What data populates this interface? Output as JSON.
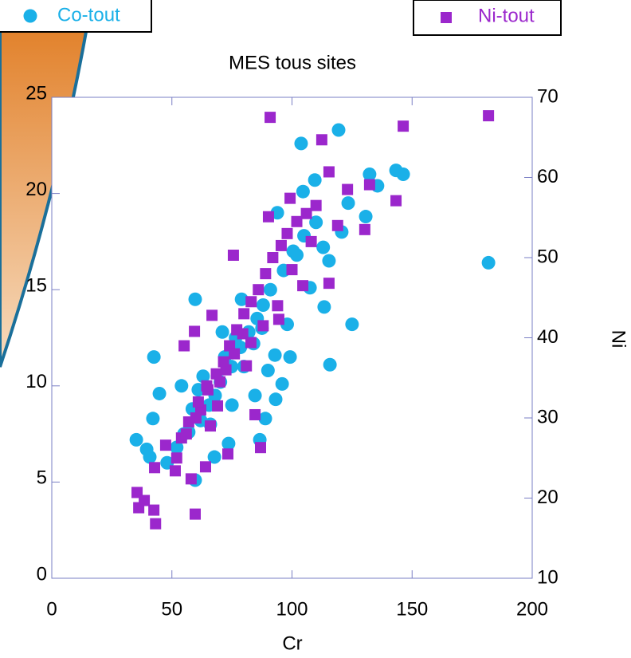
{
  "chart_data": {
    "type": "scatter",
    "title": "MES tous sites",
    "x_label": "Cr",
    "y2_label": "Ni",
    "xlim": [
      0,
      200
    ],
    "xticks": [
      0,
      50,
      100,
      150,
      200
    ],
    "ylim": [
      0,
      25
    ],
    "yticks": [
      0,
      5,
      10,
      15,
      20,
      25
    ],
    "y2lim": [
      10,
      70
    ],
    "y2ticks": [
      10,
      20,
      30,
      40,
      50,
      60,
      70
    ],
    "series": [
      {
        "name": "Co-tout",
        "color": "#1ab0e8",
        "marker": "circle",
        "x": [
          119.4,
          103.8,
          143.3,
          146.3,
          132.3,
          109.5,
          135.6,
          104.6,
          123.4,
          93.9,
          130.7,
          181.8,
          120.7,
          115.4,
          107.5,
          113.4,
          125.0,
          59.7,
          42.5,
          115.8,
          99.2,
          44.8,
          42.1,
          35.2,
          39.5,
          40.8,
          59.7,
          86.6,
          73.6,
          67.7,
          88.9,
          93.2,
          84.6,
          95.9,
          92.9,
          62.0,
          65.5,
          70.2,
          74.8,
          78.5,
          82.0,
          85.5,
          88.0,
          91.0,
          96.5,
          100.5,
          105.0,
          110.0,
          55.0,
          58.5,
          63.0,
          68.0,
          72.0,
          76.5,
          80.0,
          84.0,
          87.5,
          52.0,
          57.0,
          61.0,
          66.0,
          71.0,
          79.0,
          98.0,
          102.0,
          113.0,
          48.0,
          54.0,
          75.0,
          90.0
        ],
        "values": [
          23.3,
          22.6,
          21.2,
          21.0,
          21.0,
          20.7,
          20.4,
          20.1,
          19.5,
          19.0,
          18.8,
          16.4,
          18.0,
          16.5,
          15.1,
          14.1,
          13.2,
          14.5,
          11.5,
          11.1,
          11.5,
          9.6,
          8.3,
          7.2,
          6.7,
          6.3,
          5.1,
          7.2,
          7.0,
          6.3,
          8.3,
          9.3,
          9.5,
          10.1,
          11.6,
          8.2,
          9.0,
          10.2,
          11.0,
          12.0,
          12.8,
          13.5,
          14.2,
          15.0,
          16.0,
          17.0,
          17.8,
          18.5,
          7.5,
          8.8,
          10.5,
          9.5,
          11.5,
          12.5,
          11.0,
          12.2,
          13.0,
          6.8,
          7.6,
          9.8,
          8.0,
          12.8,
          14.5,
          13.2,
          16.8,
          17.2,
          6.0,
          10.0,
          9.0,
          10.8
        ]
      },
      {
        "name": "Ni-tout",
        "color": "#9b27cc",
        "marker": "square",
        "axis": "y2",
        "x": [
          90.9,
          146.3,
          181.8,
          112.4,
          115.4,
          123.1,
          132.3,
          143.3,
          130.3,
          99.2,
          90.2,
          75.6,
          59.7,
          43.2,
          42.5,
          35.5,
          36.2,
          38.5,
          55.1,
          59.4,
          66.7,
          86.9,
          73.3,
          64.0,
          115.4,
          104.5,
          94.5,
          82.9,
          84.6,
          47.4,
          42.8,
          51.4,
          58.0,
          62.0,
          65.0,
          68.5,
          71.5,
          74.0,
          77.0,
          80.0,
          83.0,
          86.0,
          89.0,
          92.0,
          95.5,
          98.0,
          102.0,
          106.0,
          110.0,
          54.0,
          57.0,
          61.0,
          64.5,
          69.0,
          72.5,
          76.0,
          79.5,
          52.0,
          56.0,
          60.0,
          66.0,
          70.0,
          81.0,
          88.0,
          94.0,
          100.0,
          108.0,
          119.0
        ],
        "values": [
          67.5,
          66.4,
          67.7,
          64.7,
          60.7,
          58.5,
          59.1,
          57.1,
          53.5,
          57.4,
          55.1,
          50.3,
          18.0,
          16.8,
          18.5,
          20.7,
          18.8,
          19.7,
          39.0,
          40.8,
          42.8,
          26.3,
          25.5,
          23.9,
          46.8,
          46.5,
          42.3,
          39.4,
          30.4,
          26.6,
          23.8,
          23.4,
          22.4,
          31.0,
          33.5,
          35.5,
          37.0,
          39.0,
          41.0,
          43.0,
          44.5,
          46.0,
          48.0,
          50.0,
          51.5,
          53.0,
          54.5,
          55.5,
          56.5,
          27.5,
          29.5,
          32.0,
          34.0,
          31.5,
          36.0,
          38.0,
          40.5,
          25.0,
          28.0,
          30.0,
          29.0,
          34.5,
          36.5,
          41.5,
          44.0,
          48.5,
          52.0,
          54.0
        ]
      }
    ]
  }
}
